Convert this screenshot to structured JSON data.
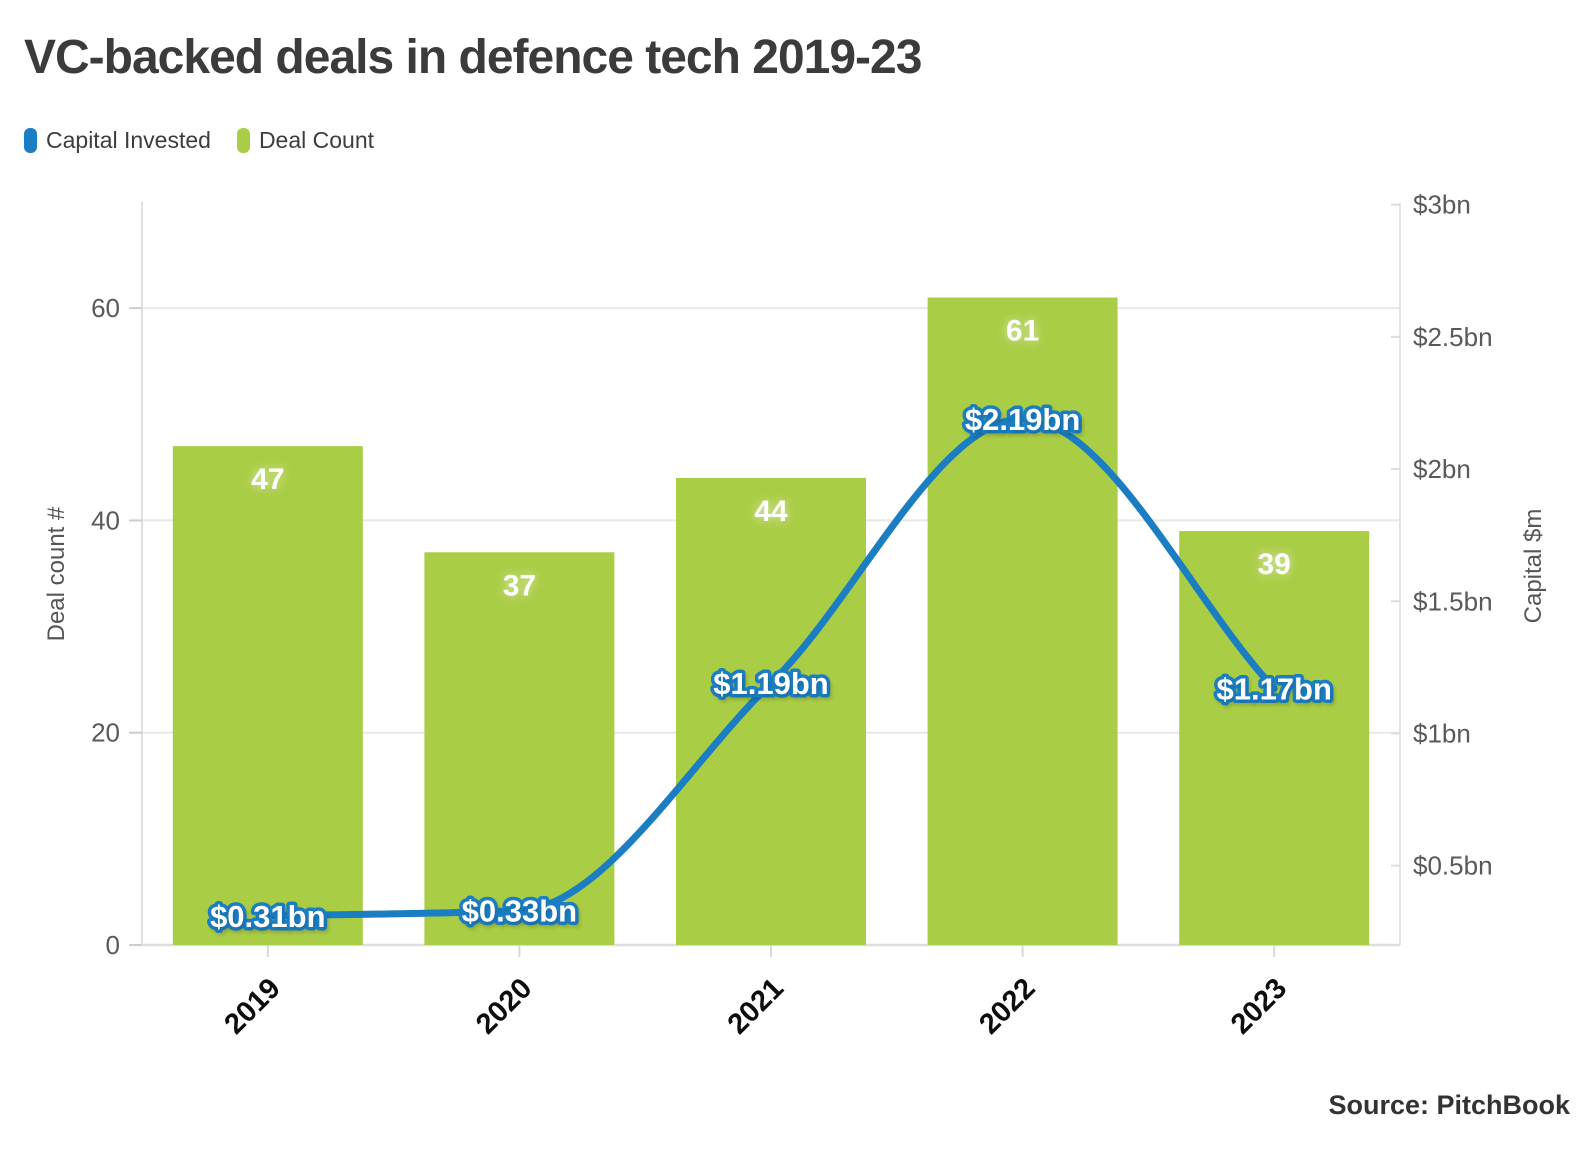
{
  "title": "VC-backed deals in defence tech 2019-23",
  "source": "Source: PitchBook",
  "legend": {
    "items": [
      {
        "label": "Capital Invested",
        "color": "#1b7ec2"
      },
      {
        "label": "Deal Count",
        "color": "#aacd46"
      }
    ]
  },
  "chart_data": {
    "type": "bar",
    "subtype": "combo: bars (deal count, left axis) + smooth line (capital invested, right axis)",
    "title": "VC-backed deals in defence tech 2019-23",
    "categories": [
      "2019",
      "2020",
      "2021",
      "2022",
      "2023"
    ],
    "series": [
      {
        "name": "Deal Count",
        "type": "bar",
        "axis": "left",
        "color": "#aacd46",
        "values": [
          47,
          37,
          44,
          61,
          39
        ],
        "data_labels": [
          "47",
          "37",
          "44",
          "61",
          "39"
        ]
      },
      {
        "name": "Capital Invested",
        "type": "line",
        "axis": "right",
        "color": "#1b7ec2",
        "values_bn": [
          0.31,
          0.33,
          1.19,
          2.19,
          1.17
        ],
        "data_labels": [
          "$0.31bn",
          "$0.33bn",
          "$1.19bn",
          "$2.19bn",
          "$1.17bn"
        ]
      }
    ],
    "left_axis": {
      "title": "Deal count #",
      "ticks": [
        0,
        20,
        40,
        60
      ],
      "range": [
        0,
        70
      ]
    },
    "right_axis": {
      "title": "Capital $m",
      "tick_labels": [
        "$0.5bn",
        "$1bn",
        "$1.5bn",
        "$2bn",
        "$2.5bn",
        "$3bn"
      ],
      "tick_values_bn": [
        0.5,
        1,
        1.5,
        2,
        2.5,
        3
      ],
      "range_bn": [
        0.2,
        3.01
      ]
    },
    "grid": {
      "horizontal_at_left_ticks": [
        20,
        40,
        60
      ],
      "color": "#e8e8e8"
    },
    "legend_position": "top-left",
    "source_text": "Source: PitchBook"
  }
}
